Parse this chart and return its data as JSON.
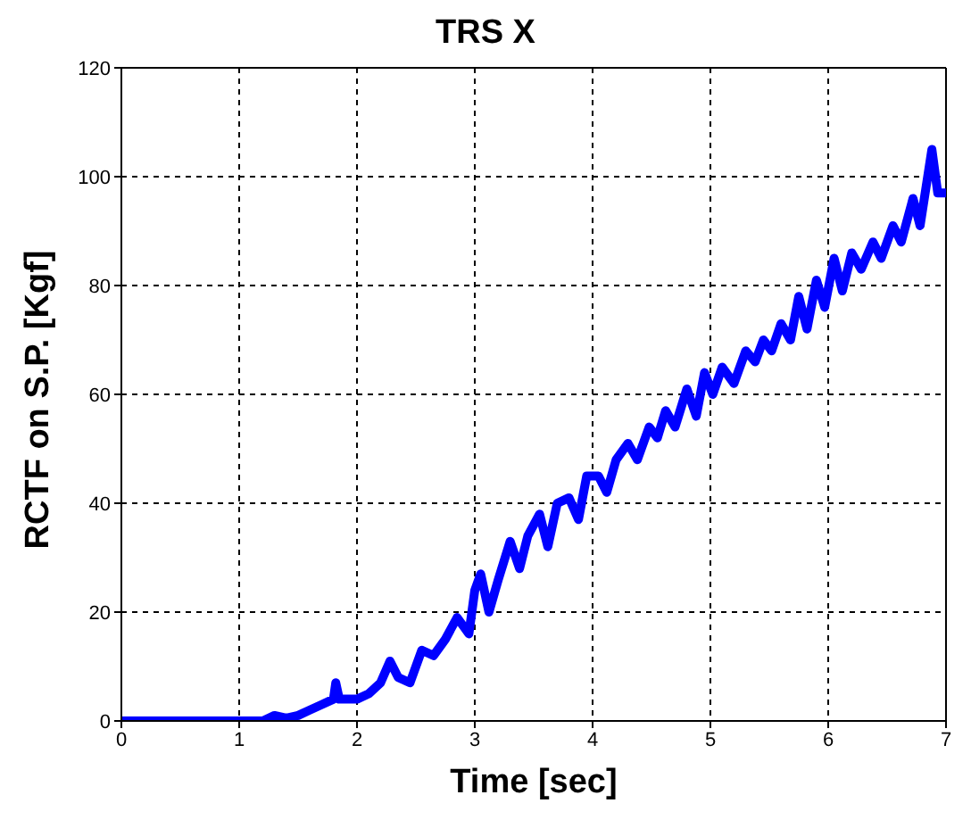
{
  "chart_data": {
    "type": "line",
    "title": "TRS X",
    "xlabel": "Time [sec]",
    "ylabel": "RCTF on S.P. [Kgf]",
    "xlim": [
      0,
      7
    ],
    "xticks": [
      0,
      1,
      2,
      3,
      4,
      5,
      6,
      7
    ],
    "ylim": [
      0,
      120
    ],
    "yticks": [
      0,
      20,
      40,
      60,
      80,
      100,
      120
    ],
    "grid": true,
    "line_style": "solid",
    "marker": "none",
    "series": [
      {
        "color": "#0000ff",
        "x": [
          0,
          1.2,
          1.3,
          1.4,
          1.5,
          1.6,
          1.7,
          1.8,
          1.82,
          1.85,
          2.0,
          2.1,
          2.2,
          2.28,
          2.35,
          2.45,
          2.55,
          2.65,
          2.75,
          2.85,
          2.95,
          3.0,
          3.05,
          3.12,
          3.2,
          3.3,
          3.38,
          3.45,
          3.55,
          3.62,
          3.7,
          3.8,
          3.88,
          3.95,
          4.05,
          4.12,
          4.2,
          4.3,
          4.38,
          4.48,
          4.55,
          4.62,
          4.7,
          4.8,
          4.88,
          4.95,
          5.02,
          5.1,
          5.2,
          5.3,
          5.38,
          5.45,
          5.52,
          5.6,
          5.68,
          5.75,
          5.82,
          5.9,
          5.97,
          6.05,
          6.12,
          6.2,
          6.28,
          6.38,
          6.45,
          6.55,
          6.62,
          6.72,
          6.78,
          6.88,
          6.93,
          7.0
        ],
        "values": [
          0,
          0,
          1,
          0.5,
          1,
          2,
          3,
          4,
          7,
          4,
          4,
          5,
          7,
          11,
          8,
          7,
          13,
          12,
          15,
          19,
          16,
          24,
          27,
          20,
          26,
          33,
          28,
          34,
          38,
          32,
          40,
          41,
          37,
          45,
          45,
          42,
          48,
          51,
          48,
          54,
          52,
          57,
          54,
          61,
          56,
          64,
          60,
          65,
          62,
          68,
          66,
          70,
          68,
          73,
          70,
          78,
          72,
          81,
          76,
          85,
          79,
          86,
          83,
          88,
          85,
          91,
          88,
          96,
          91,
          105,
          97,
          97
        ]
      }
    ]
  }
}
